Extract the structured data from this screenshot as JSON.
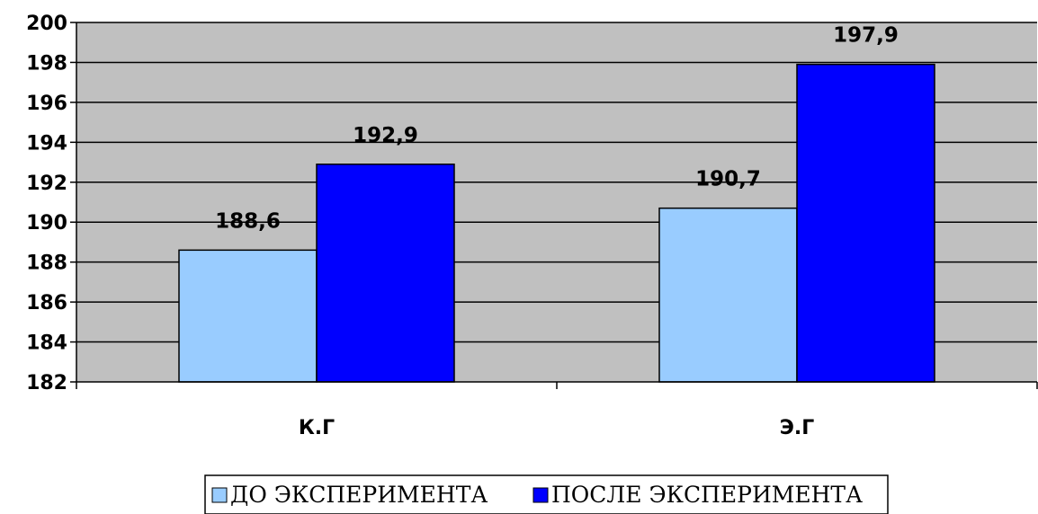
{
  "chart_data": {
    "type": "bar",
    "categories": [
      "К.Г",
      "Э.Г"
    ],
    "series": [
      {
        "name": "ДО ЭКСПЕРИМЕНТА",
        "values": [
          188.6,
          190.7
        ],
        "value_labels": [
          "188,6",
          "190,7"
        ],
        "color": "#99CCFF"
      },
      {
        "name": "ПОСЛЕ ЭКСПЕРИМЕНТА",
        "values": [
          192.9,
          197.9
        ],
        "value_labels": [
          "192,9",
          "197,9"
        ],
        "color": "#0000FF"
      }
    ],
    "ylim": [
      182,
      200
    ],
    "yticks": [
      "182",
      "184",
      "186",
      "188",
      "190",
      "192",
      "194",
      "196",
      "198",
      "200"
    ],
    "title": "",
    "xlabel": "",
    "ylabel": "",
    "grid": true,
    "plot_background": "#C0C0C0",
    "legend_position": "bottom"
  }
}
